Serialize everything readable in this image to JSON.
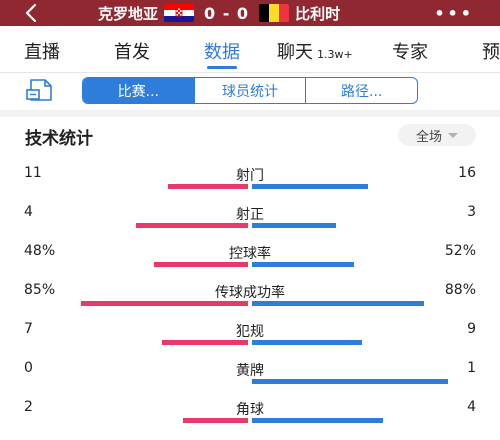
{
  "header": {
    "home_team": "克罗地亚",
    "away_team": "比利时",
    "score": "0 - 0",
    "home_flag_colors": [
      "#ff0000",
      "#ffffff",
      "#171796"
    ],
    "away_flag_colors": [
      "#000000",
      "#fdda24",
      "#ef3340"
    ]
  },
  "nav": {
    "tabs": [
      {
        "label": "直播"
      },
      {
        "label": "首发"
      },
      {
        "label": "数据"
      },
      {
        "label": "聊天",
        "sub": "1.3w+"
      },
      {
        "label": "专家"
      },
      {
        "label": "预"
      }
    ],
    "active_index": 2
  },
  "segments": [
    "比赛...",
    "球员统计",
    "路径..."
  ],
  "stats_section": {
    "title": "技术统计",
    "filter": "全场"
  },
  "colors": {
    "accent": "#2e7ddb",
    "home_bar": "#e8396a",
    "away_bar": "#2e7ddb",
    "header_bg": "#8f2830"
  },
  "stats": [
    {
      "label": "射门",
      "home": "11",
      "away": "16",
      "home_frac": 0.41,
      "away_frac": 0.59
    },
    {
      "label": "射正",
      "home": "4",
      "away": "3",
      "home_frac": 0.57,
      "away_frac": 0.43
    },
    {
      "label": "控球率",
      "home": "48%",
      "away": "52%",
      "home_frac": 0.48,
      "away_frac": 0.52
    },
    {
      "label": "传球成功率",
      "home": "85%",
      "away": "88%",
      "home_frac": 0.85,
      "away_frac": 0.88
    },
    {
      "label": "犯规",
      "home": "7",
      "away": "9",
      "home_frac": 0.44,
      "away_frac": 0.56
    },
    {
      "label": "黄牌",
      "home": "0",
      "away": "1",
      "home_frac": 0.0,
      "away_frac": 1.0
    },
    {
      "label": "角球",
      "home": "2",
      "away": "4",
      "home_frac": 0.33,
      "away_frac": 0.67
    }
  ]
}
